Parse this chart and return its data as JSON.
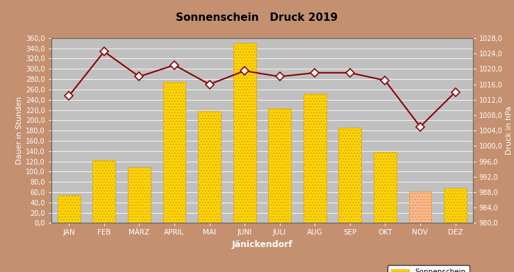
{
  "title": "Sonnenschein   Druck 2019",
  "xlabel": "Jänickendorf",
  "ylabel_left": "Dauer in Stunden",
  "ylabel_right": "Druck in hPa",
  "months": [
    "JAN",
    "FEB",
    "MÄRZ",
    "APRIL",
    "MAI",
    "JUNI",
    "JULI",
    "AUG",
    "SEP",
    "OKT",
    "NOV",
    "DEZ"
  ],
  "sunshine": [
    55,
    122,
    108,
    275,
    218,
    350,
    223,
    252,
    185,
    138,
    62,
    68
  ],
  "pressure": [
    1013.0,
    1024.5,
    1018.0,
    1021.0,
    1016.0,
    1019.5,
    1018.0,
    1019.0,
    1019.0,
    1017.0,
    1005.0,
    1014.0
  ],
  "bar_colors": [
    "#FFD700",
    "#FFD700",
    "#FFD700",
    "#FFD700",
    "#FFD700",
    "#FFD700",
    "#FFD700",
    "#FFD700",
    "#FFD700",
    "#FFD700",
    "#FFB6A0",
    "#FFD700"
  ],
  "bar_edgecolor": "#DAA520",
  "line_color": "#8B0000",
  "marker_color": "#FFFFFF",
  "marker_edgecolor": "#8B0000",
  "ylim_left": [
    0,
    360
  ],
  "ylim_right": [
    980,
    1028
  ],
  "yticks_left": [
    0,
    20,
    40,
    60,
    80,
    100,
    120,
    140,
    160,
    180,
    200,
    220,
    240,
    260,
    280,
    300,
    320,
    340,
    360
  ],
  "yticks_right": [
    980,
    984,
    988,
    992,
    996,
    1000,
    1004,
    1008,
    1012,
    1016,
    1020,
    1024,
    1028
  ],
  "background_outer": "#C49070",
  "background_plot": "#C0C0C0",
  "title_color": "#000000",
  "tick_label_color": "#FFFFFF",
  "grid_color": "#FFFFFF",
  "figsize": [
    7.4,
    3.92
  ],
  "dpi": 100
}
